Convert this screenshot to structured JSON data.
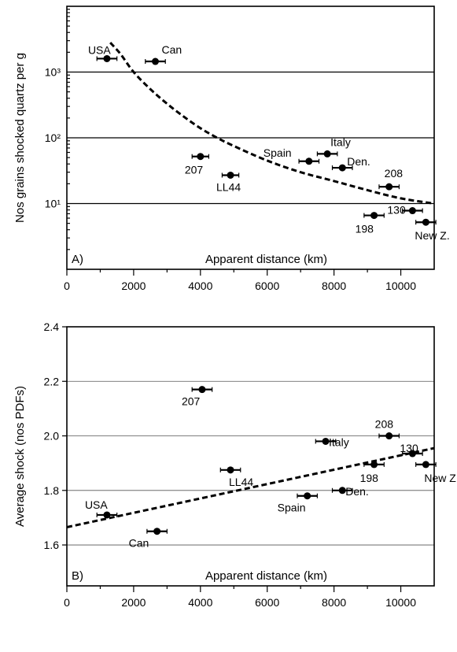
{
  "chart_data": [
    {
      "type": "scatter",
      "panel_label": "A)",
      "xlabel": "Apparent distance (km)",
      "ylabel": "Nos grains shocked quartz per g",
      "x_scale": "linear",
      "y_scale": "log",
      "xlim": [
        0,
        11000
      ],
      "ylim": [
        1,
        10000
      ],
      "x_ticks": [
        0,
        2000,
        4000,
        6000,
        8000,
        10000
      ],
      "y_tick_labels": [
        "10¹",
        "10²",
        "10³"
      ],
      "y_gridlines": [
        10,
        100,
        1000
      ],
      "points": [
        {
          "label": "USA",
          "x": 1200,
          "y": 1600,
          "xerr": 300
        },
        {
          "label": "Can",
          "x": 2650,
          "y": 1450,
          "xerr": 300
        },
        {
          "label": "207",
          "x": 4000,
          "y": 52,
          "xerr": 250
        },
        {
          "label": "LL44",
          "x": 4900,
          "y": 27,
          "xerr": 250
        },
        {
          "label": "Spain",
          "x": 7250,
          "y": 44,
          "xerr": 300
        },
        {
          "label": "Italy",
          "x": 7800,
          "y": 57,
          "xerr": 300
        },
        {
          "label": "Den.",
          "x": 8250,
          "y": 35,
          "xerr": 300
        },
        {
          "label": "208",
          "x": 9650,
          "y": 18,
          "xerr": 300
        },
        {
          "label": "198",
          "x": 9200,
          "y": 6.6,
          "xerr": 300
        },
        {
          "label": "130",
          "x": 10350,
          "y": 7.8,
          "xerr": 300
        },
        {
          "label": "New Z.",
          "x": 10750,
          "y": 5.2,
          "xerr": 300
        }
      ],
      "trendline": {
        "style": "dashed",
        "x": [
          1300,
          1600,
          2000,
          2500,
          3000,
          3500,
          4000,
          4500,
          5000,
          6000,
          7000,
          8000,
          9000,
          10000,
          11000
        ],
        "y": [
          2800,
          1900,
          1000,
          550,
          330,
          210,
          140,
          100,
          75,
          45,
          30,
          22,
          16,
          12,
          10
        ]
      }
    },
    {
      "type": "scatter",
      "panel_label": "B)",
      "xlabel": "Apparent distance (km)",
      "ylabel": "Average shock (nos PDFs)",
      "x_scale": "linear",
      "y_scale": "linear",
      "xlim": [
        0,
        11000
      ],
      "ylim": [
        1.45,
        2.4
      ],
      "x_ticks": [
        0,
        2000,
        4000,
        6000,
        8000,
        10000
      ],
      "y_ticks": [
        1.6,
        1.8,
        2.0,
        2.2,
        2.4
      ],
      "y_tick_labels": [
        "1.6",
        "1.8",
        "2.0",
        "2.2",
        "2.4"
      ],
      "y_gridlines": [
        1.6,
        1.8,
        2.0,
        2.2
      ],
      "points": [
        {
          "label": "USA",
          "x": 1200,
          "y": 1.71,
          "xerr": 300
        },
        {
          "label": "Can",
          "x": 2700,
          "y": 1.65,
          "xerr": 300
        },
        {
          "label": "207",
          "x": 4050,
          "y": 2.17,
          "xerr": 300
        },
        {
          "label": "LL44",
          "x": 4900,
          "y": 1.875,
          "xerr": 300
        },
        {
          "label": "Spain",
          "x": 7200,
          "y": 1.78,
          "xerr": 300
        },
        {
          "label": "Italy",
          "x": 7750,
          "y": 1.98,
          "xerr": 300
        },
        {
          "label": "Den.",
          "x": 8250,
          "y": 1.8,
          "xerr": 300
        },
        {
          "label": "208",
          "x": 9650,
          "y": 2.0,
          "xerr": 300
        },
        {
          "label": "198",
          "x": 9200,
          "y": 1.895,
          "xerr": 300
        },
        {
          "label": "130",
          "x": 10350,
          "y": 1.935,
          "xerr": 300
        },
        {
          "label": "New Z.",
          "x": 10750,
          "y": 1.895,
          "xerr": 300
        }
      ],
      "trendline": {
        "style": "dashed",
        "x": [
          0,
          11000
        ],
        "y": [
          1.665,
          1.955
        ]
      }
    }
  ]
}
